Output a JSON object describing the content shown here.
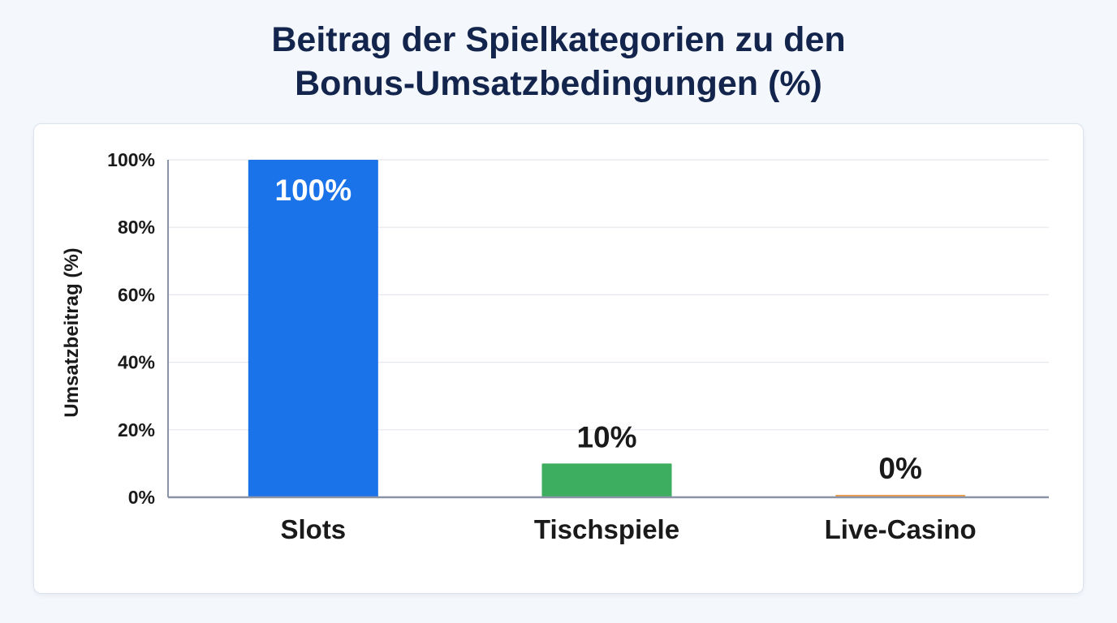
{
  "title_lines": [
    "Beitrag der Spielkategorien zu den",
    "Bonus-Umsatzbedingungen (%)"
  ],
  "chart_data": {
    "type": "bar",
    "title": "Beitrag der Spielkategorien zu den Bonus-Umsatzbedingungen (%)",
    "xlabel": "",
    "ylabel": "Umsatzbeitrag (%)",
    "categories": [
      "Slots",
      "Tischspiele",
      "Live-Casino"
    ],
    "values": [
      100,
      10,
      0
    ],
    "data_labels": [
      "100%",
      "10%",
      "0%"
    ],
    "bar_colors": [
      "#1a73e8",
      "#3dae60",
      "#f0a04b"
    ],
    "ylim": [
      0,
      100
    ],
    "yticks": [
      0,
      20,
      40,
      60,
      80,
      100
    ],
    "ytick_labels": [
      "0%",
      "20%",
      "40%",
      "60%",
      "80%",
      "100%"
    ],
    "grid": true,
    "legend": "none"
  }
}
